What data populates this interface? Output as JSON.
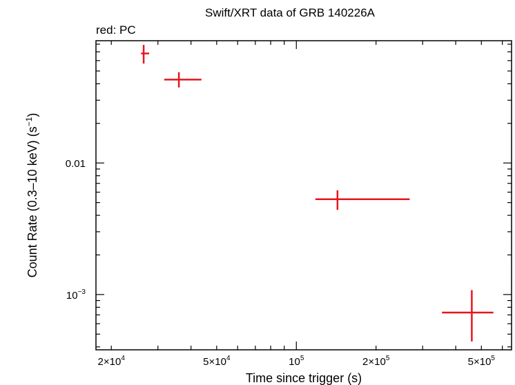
{
  "chart_data": {
    "type": "scatter",
    "title": "Swift/XRT data of GRB 140226A",
    "subtitle": "red: PC",
    "xlabel": "Time since trigger (s)",
    "ylabel_main": "Count Rate (0.3–10 keV) (s",
    "ylabel_sup": "−1",
    "ylabel_close": ")",
    "xscale": "log",
    "yscale": "log",
    "xlim": [
      17500,
      650000
    ],
    "ylim": [
      0.00038,
      0.085
    ],
    "xticks": [
      {
        "value": 20000,
        "mant": "2×10",
        "exp": "4"
      },
      {
        "value": 50000,
        "mant": "5×10",
        "exp": "4"
      },
      {
        "value": 100000,
        "mant": "10",
        "exp": "5"
      },
      {
        "value": 200000,
        "mant": "2×10",
        "exp": "5"
      },
      {
        "value": 500000,
        "mant": "5×10",
        "exp": "5"
      }
    ],
    "yticks": [
      {
        "value": 0.01,
        "mant": "0.01",
        "exp": ""
      },
      {
        "value": 0.001,
        "mant": "10",
        "exp": "−3"
      }
    ],
    "series": [
      {
        "color": "#e8141b",
        "points": [
          {
            "x": 26500,
            "xlo": 25900,
            "xhi": 27800,
            "y": 0.068,
            "ylo": 0.057,
            "yhi": 0.079
          },
          {
            "x": 36000,
            "xlo": 31700,
            "xhi": 43800,
            "y": 0.043,
            "ylo": 0.0375,
            "yhi": 0.049
          },
          {
            "x": 143000,
            "xlo": 118000,
            "xhi": 268000,
            "y": 0.0053,
            "ylo": 0.0044,
            "yhi": 0.0062
          },
          {
            "x": 460000,
            "xlo": 355000,
            "xhi": 555000,
            "y": 0.00073,
            "ylo": 0.00044,
            "yhi": 0.00108
          }
        ]
      }
    ]
  }
}
